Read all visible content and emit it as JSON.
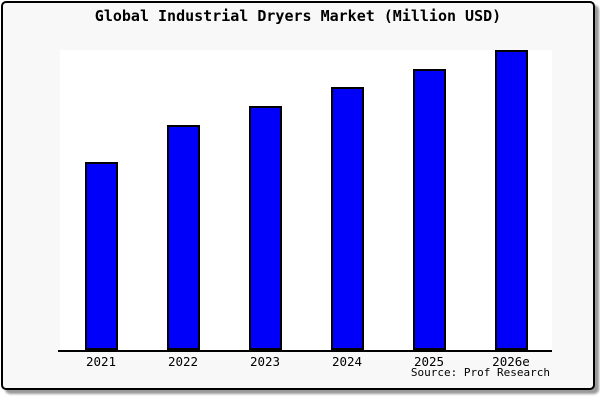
{
  "title": "Global Industrial Dryers Market (Million USD)",
  "source": {
    "label": "Source: Prof Research"
  },
  "colors": {
    "bar": "#0000fa",
    "bar_border": "#000000",
    "card_background": "#f8f8f8",
    "plot_background": "#ffffff",
    "axis": "#000000",
    "text": "#000000",
    "card_border": "#000000"
  },
  "chart_data": {
    "type": "bar",
    "title": "Global Industrial Dryers Market (Million USD)",
    "categories": [
      "2021",
      "2022",
      "2023",
      "2024",
      "2025",
      "2026e"
    ],
    "values": [
      62.6,
      74.9,
      81.4,
      87.7,
      93.7,
      100
    ],
    "xlabel": "",
    "ylabel": "",
    "ylim": [
      0,
      100
    ],
    "grid": false,
    "legend": false,
    "y_axis_tick_labels": false,
    "note": "No y-axis scale is shown in the image; values are bar heights normalized so the 2026e bar = 100."
  }
}
